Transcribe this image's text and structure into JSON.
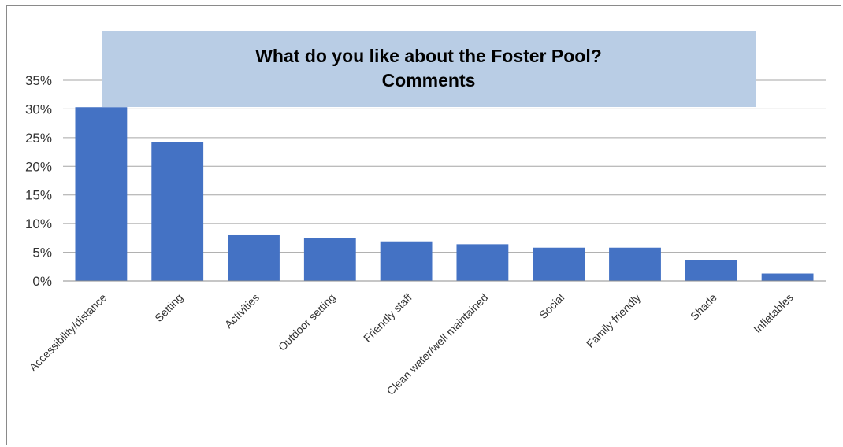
{
  "chart_data": {
    "type": "bar",
    "title": "What do you like about the Foster Pool?",
    "subtitle": "Comments",
    "xlabel": "",
    "ylabel": "",
    "ylim": [
      0,
      35
    ],
    "yticks": [
      "0%",
      "5%",
      "10%",
      "15%",
      "20%",
      "25%",
      "30%",
      "35%"
    ],
    "categories": [
      "Accessibility/distance",
      "Setting",
      "Activities",
      "Outdoor setting",
      "Friendly staff",
      "Clean water/well maintained",
      "Social",
      "Family friendly",
      "Shade",
      "Inflatables"
    ],
    "values": [
      30.3,
      24.2,
      8.1,
      7.5,
      6.9,
      6.4,
      5.8,
      5.8,
      3.6,
      1.3
    ],
    "grid": true,
    "legend": "none",
    "bar_color": "#4472c4"
  }
}
